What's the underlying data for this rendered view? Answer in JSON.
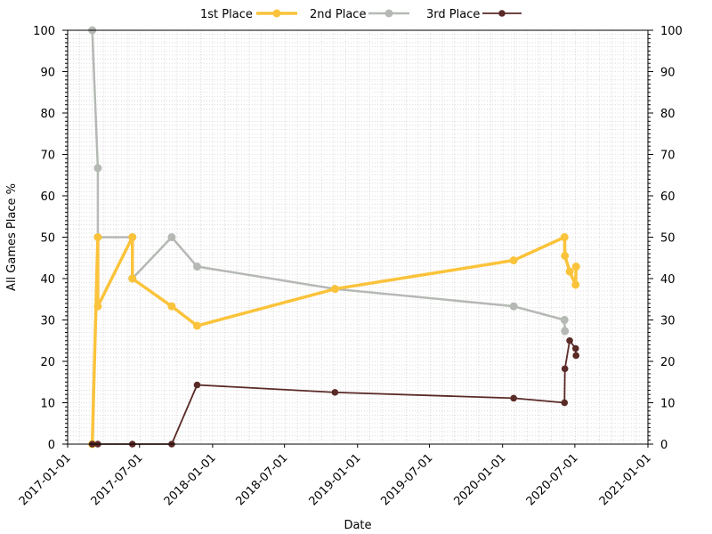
{
  "chart_data": {
    "type": "line",
    "title": "",
    "xlabel": "Date",
    "ylabel": "All Games Place %",
    "xlim": [
      "2017-01-01",
      "2021-01-01"
    ],
    "ylim": [
      0,
      100
    ],
    "x_ticks": [
      "2017-01-01",
      "2017-07-01",
      "2018-01-01",
      "2018-07-01",
      "2019-01-01",
      "2019-07-01",
      "2020-01-01",
      "2020-07-01",
      "2021-01-01"
    ],
    "y_ticks": [
      "0",
      "10",
      "20",
      "30",
      "40",
      "50",
      "60",
      "70",
      "80",
      "90",
      "100"
    ],
    "grid": "minor dotted",
    "legend_position": "top-center",
    "series": [
      {
        "name": "1st Place",
        "color": "#fbc33b",
        "points": [
          {
            "x": "2017-03-04",
            "y": 0
          },
          {
            "x": "2017-03-18",
            "y": 50
          },
          {
            "x": "2017-03-18",
            "y": 33.3
          },
          {
            "x": "2017-06-13",
            "y": 50
          },
          {
            "x": "2017-06-13",
            "y": 40
          },
          {
            "x": "2017-09-20",
            "y": 33.3
          },
          {
            "x": "2017-11-23",
            "y": 28.6
          },
          {
            "x": "2018-11-05",
            "y": 37.5
          },
          {
            "x": "2020-01-29",
            "y": 44.4
          },
          {
            "x": "2020-06-05",
            "y": 50
          },
          {
            "x": "2020-06-06",
            "y": 45.5
          },
          {
            "x": "2020-06-18",
            "y": 41.7
          },
          {
            "x": "2020-07-03",
            "y": 38.5
          },
          {
            "x": "2020-07-04",
            "y": 42.9
          }
        ]
      },
      {
        "name": "2nd Place",
        "color": "#b5b9b4",
        "points": [
          {
            "x": "2017-03-04",
            "y": 100
          },
          {
            "x": "2017-03-18",
            "y": 66.7
          },
          {
            "x": "2017-03-18",
            "y": 50
          },
          {
            "x": "2017-06-13",
            "y": 50
          },
          {
            "x": "2017-06-13",
            "y": 40
          },
          {
            "x": "2017-09-20",
            "y": 50
          },
          {
            "x": "2017-11-23",
            "y": 42.9
          },
          {
            "x": "2018-11-05",
            "y": 37.5
          },
          {
            "x": "2020-01-29",
            "y": 33.3
          },
          {
            "x": "2020-06-05",
            "y": 30
          },
          {
            "x": "2020-06-06",
            "y": 27.3
          }
        ]
      },
      {
        "name": "3rd Place",
        "color": "#5a2a27",
        "points": [
          {
            "x": "2017-03-04",
            "y": 0
          },
          {
            "x": "2017-03-18",
            "y": 0
          },
          {
            "x": "2017-06-13",
            "y": 0
          },
          {
            "x": "2017-09-20",
            "y": 0
          },
          {
            "x": "2017-11-23",
            "y": 14.3
          },
          {
            "x": "2018-11-05",
            "y": 12.5
          },
          {
            "x": "2020-01-29",
            "y": 11.1
          },
          {
            "x": "2020-06-05",
            "y": 10
          },
          {
            "x": "2020-06-06",
            "y": 18.2
          },
          {
            "x": "2020-06-18",
            "y": 25
          },
          {
            "x": "2020-07-03",
            "y": 23.1
          },
          {
            "x": "2020-07-04",
            "y": 21.4
          }
        ]
      }
    ]
  }
}
